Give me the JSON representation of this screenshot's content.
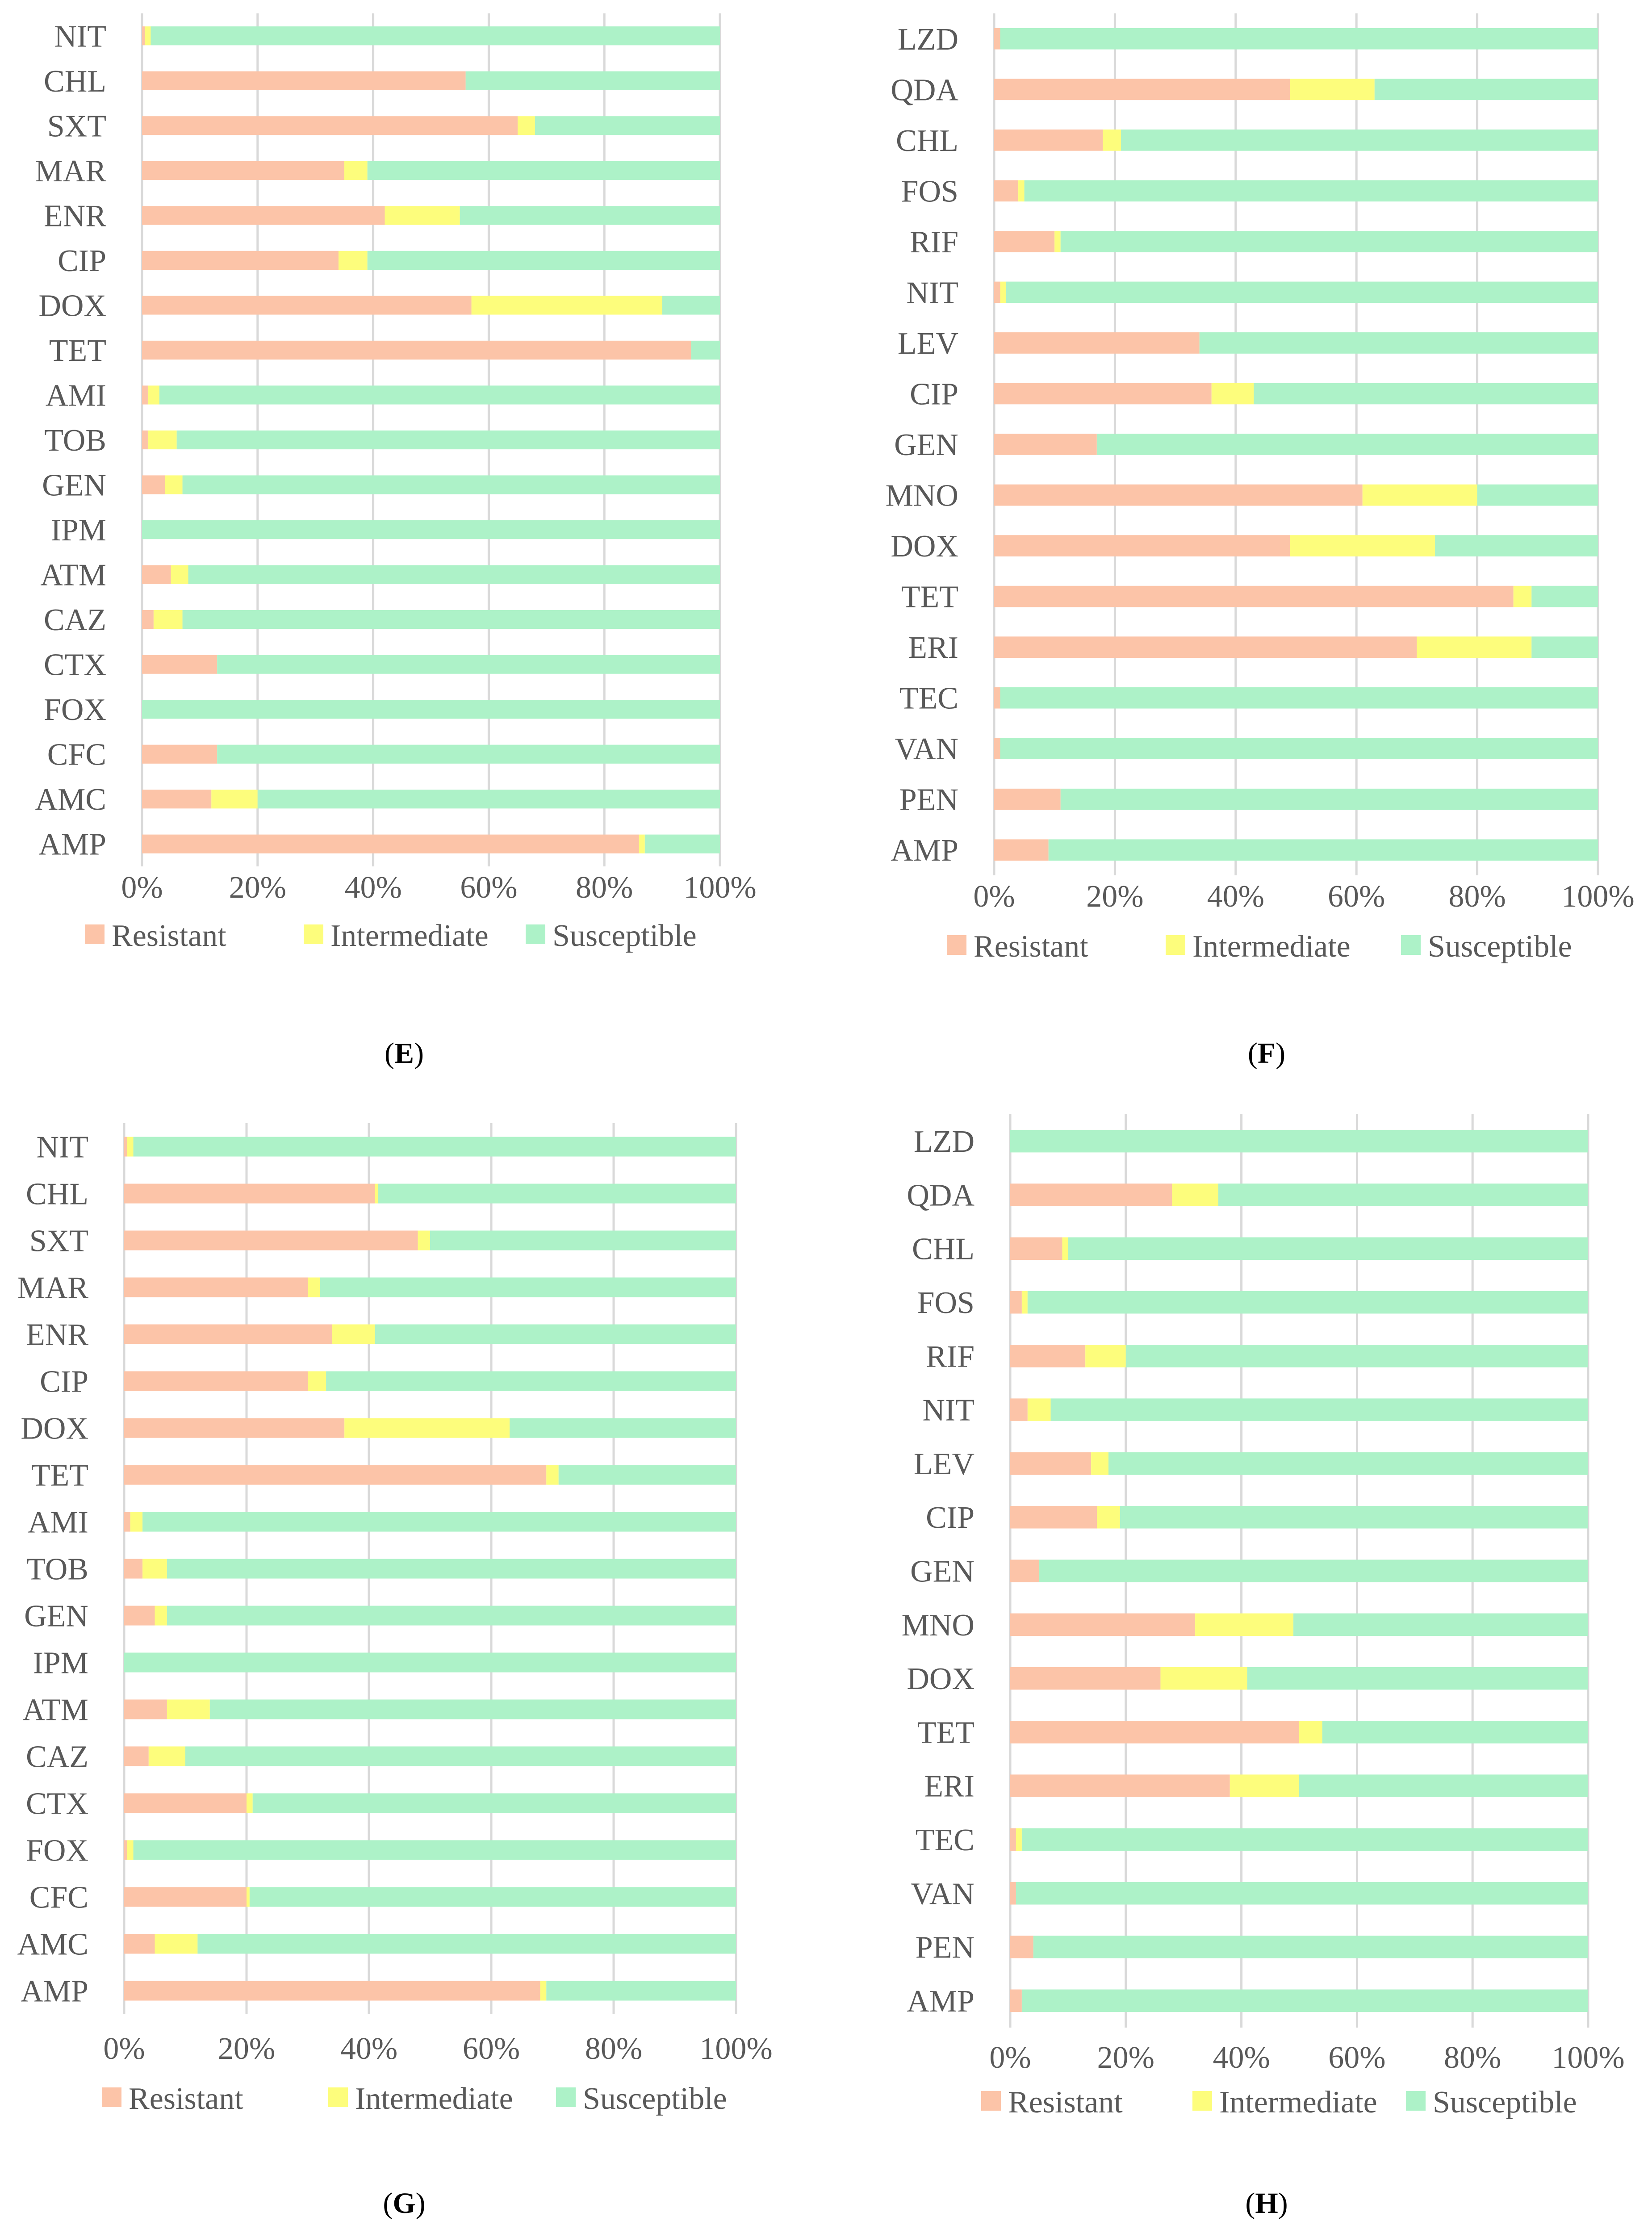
{
  "colors": {
    "resistant": "#fcc4a8",
    "intermediate": "#fdfd7c",
    "susceptible": "#adf2c8",
    "grid": "#d9d9d9",
    "text": "#595959",
    "caption": "#000000"
  },
  "legend_labels": [
    "Resistant",
    "Intermediate",
    "Susceptible"
  ],
  "axis_ticks": [
    "0%",
    "20%",
    "40%",
    "60%",
    "80%",
    "100%"
  ],
  "chart_data": [
    {
      "type": "bar",
      "stacked": true,
      "orientation": "horizontal",
      "panel": "E",
      "xlim": [
        0,
        100
      ],
      "unit": "%",
      "categories": [
        "NIT",
        "CHL",
        "SXT",
        "MAR",
        "ENR",
        "CIP",
        "DOX",
        "TET",
        "AMI",
        "TOB",
        "GEN",
        "IPM",
        "ATM",
        "CAZ",
        "CTX",
        "FOX",
        "CFC",
        "AMC",
        "AMP"
      ],
      "series": [
        {
          "name": "Resistant",
          "values": [
            0.5,
            56,
            65,
            35,
            42,
            34,
            57,
            95,
            1,
            1,
            4,
            0,
            5,
            2,
            13,
            0,
            13,
            12,
            86
          ]
        },
        {
          "name": "Intermediate",
          "values": [
            1,
            0,
            3,
            4,
            13,
            5,
            33,
            0,
            2,
            5,
            3,
            0,
            3,
            5,
            0,
            0,
            0,
            8,
            1
          ]
        },
        {
          "name": "Susceptible",
          "values": [
            98.5,
            44,
            32,
            61,
            45,
            61,
            10,
            5,
            97,
            94,
            93,
            100,
            92,
            93,
            87,
            100,
            87,
            80,
            13
          ]
        }
      ]
    },
    {
      "type": "bar",
      "stacked": true,
      "orientation": "horizontal",
      "panel": "F",
      "xlim": [
        0,
        100
      ],
      "unit": "%",
      "categories": [
        "LZD",
        "QDA",
        "CHL",
        "FOS",
        "RIF",
        "NIT",
        "LEV",
        "CIP",
        "GEN",
        "MNO",
        "DOX",
        "TET",
        "ERI",
        "TEC",
        "VAN",
        "PEN",
        "AMP"
      ],
      "series": [
        {
          "name": "Resistant",
          "values": [
            1,
            49,
            18,
            4,
            10,
            1,
            34,
            36,
            17,
            61,
            49,
            86,
            70,
            1,
            1,
            11,
            9
          ]
        },
        {
          "name": "Intermediate",
          "values": [
            0,
            14,
            3,
            1,
            1,
            1,
            0,
            7,
            0,
            19,
            24,
            3,
            19,
            0,
            0,
            0,
            0
          ]
        },
        {
          "name": "Susceptible",
          "values": [
            99,
            37,
            79,
            95,
            89,
            98,
            66,
            57,
            83,
            20,
            27,
            11,
            11,
            99,
            99,
            89,
            91
          ]
        }
      ]
    },
    {
      "type": "bar",
      "stacked": true,
      "orientation": "horizontal",
      "panel": "G",
      "xlim": [
        0,
        100
      ],
      "unit": "%",
      "categories": [
        "NIT",
        "CHL",
        "SXT",
        "MAR",
        "ENR",
        "CIP",
        "DOX",
        "TET",
        "AMI",
        "TOB",
        "GEN",
        "IPM",
        "ATM",
        "CAZ",
        "CTX",
        "FOX",
        "CFC",
        "AMC",
        "AMP"
      ],
      "series": [
        {
          "name": "Resistant",
          "values": [
            0.5,
            41,
            48,
            30,
            34,
            30,
            36,
            69,
            1,
            3,
            5,
            0,
            7,
            4,
            20,
            0.5,
            20,
            5,
            68
          ]
        },
        {
          "name": "Intermediate",
          "values": [
            1,
            0.5,
            2,
            2,
            7,
            3,
            27,
            2,
            2,
            4,
            2,
            0,
            7,
            6,
            1,
            1,
            0.5,
            7,
            1
          ]
        },
        {
          "name": "Susceptible",
          "values": [
            98.5,
            58.5,
            50,
            68,
            59,
            67,
            37,
            29,
            97,
            93,
            93,
            100,
            86,
            90,
            79,
            98.5,
            79.5,
            88,
            31
          ]
        }
      ]
    },
    {
      "type": "bar",
      "stacked": true,
      "orientation": "horizontal",
      "panel": "H",
      "xlim": [
        0,
        100
      ],
      "unit": "%",
      "categories": [
        "LZD",
        "QDA",
        "CHL",
        "FOS",
        "RIF",
        "NIT",
        "LEV",
        "CIP",
        "GEN",
        "MNO",
        "DOX",
        "TET",
        "ERI",
        "TEC",
        "VAN",
        "PEN",
        "AMP"
      ],
      "series": [
        {
          "name": "Resistant",
          "values": [
            0,
            28,
            9,
            2,
            13,
            3,
            14,
            15,
            5,
            32,
            26,
            50,
            38,
            1,
            1,
            4,
            2
          ]
        },
        {
          "name": "Intermediate",
          "values": [
            0,
            8,
            1,
            1,
            7,
            4,
            3,
            4,
            0,
            17,
            15,
            4,
            12,
            1,
            0,
            0,
            0
          ]
        },
        {
          "name": "Susceptible",
          "values": [
            100,
            64,
            90,
            97,
            80,
            93,
            83,
            81,
            95,
            51,
            59,
            46,
            50,
            98,
            99,
            96,
            98
          ]
        }
      ]
    }
  ]
}
